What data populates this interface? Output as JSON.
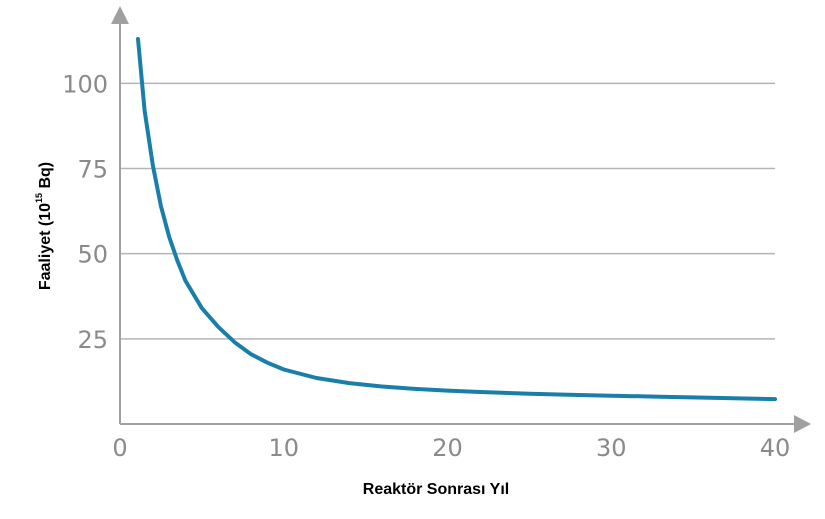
{
  "chart_data": {
    "type": "line",
    "title": "",
    "xlabel": "Reaktör Sonrası Yıl",
    "ylabel_prefix": "Faaliyet (10",
    "ylabel_exponent": "15",
    "ylabel_suffix": " Bq)",
    "xlim": [
      0,
      40
    ],
    "ylim": [
      0,
      118
    ],
    "x_ticks": [
      0,
      10,
      20,
      30,
      40
    ],
    "x_tick_labels": [
      "0",
      "10",
      "20",
      "30",
      "40"
    ],
    "y_ticks": [
      25,
      50,
      75,
      100
    ],
    "y_tick_labels": [
      "25",
      "50",
      "75",
      100
    ],
    "grid": true,
    "legend": "none",
    "colors": {
      "line": "#1a7fa8",
      "grid": "#b5b5b5",
      "axis": "#a0a0a0"
    },
    "series": [
      {
        "x": [
          1.1,
          1.5,
          2,
          2.5,
          3,
          3.5,
          4,
          5,
          6,
          7,
          8,
          9,
          10,
          12,
          14,
          16,
          18,
          20,
          22,
          25,
          28,
          30,
          33,
          36,
          40
        ],
        "y": [
          113,
          92,
          76,
          64,
          55,
          48,
          42,
          34,
          28.5,
          24,
          20.5,
          18,
          16,
          13.5,
          12,
          11,
          10.3,
          9.8,
          9.4,
          8.9,
          8.5,
          8.3,
          8,
          7.7,
          7.3
        ]
      }
    ]
  }
}
